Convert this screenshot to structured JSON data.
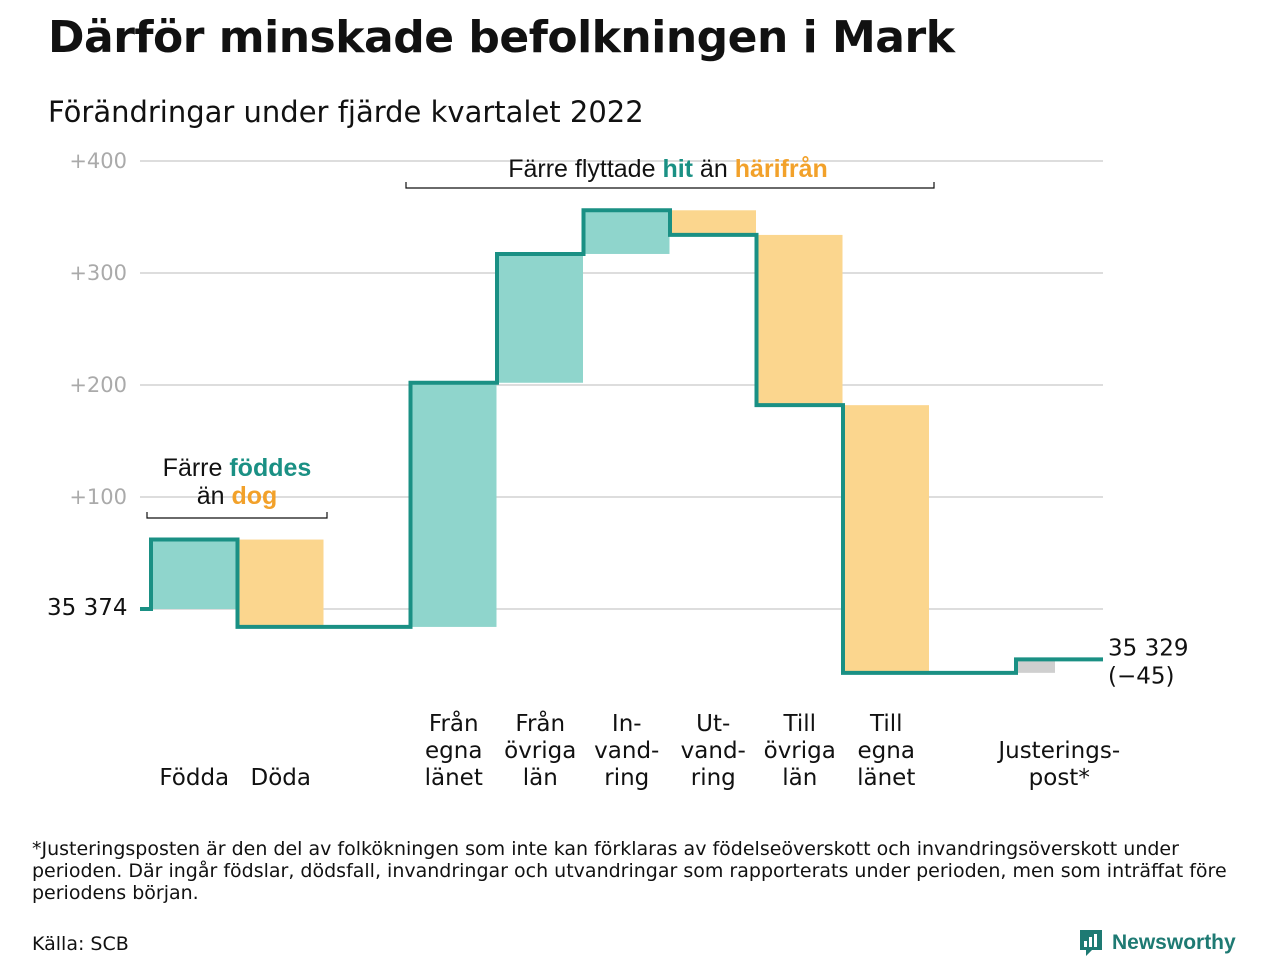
{
  "title": "Därför minskade befolkningen i Mark",
  "subtitle": "Förändringar under fjärde kvartalet 2022",
  "colors": {
    "increase": "#8fd5cc",
    "decrease": "#fbd68e",
    "adjustment": "#cfcfcf",
    "line": "#1a9084",
    "hit": "#1a9084",
    "harifran": "#f2a12a",
    "grid": "#dddddd",
    "tick": "#aaaaaa",
    "brand": "#1e7a73"
  },
  "chart_data": {
    "type": "waterfall",
    "start_value": 35374,
    "start_label": "35 374",
    "end_value": 35329,
    "end_label": "35 329",
    "end_change_label": "(−45)",
    "ylim": [
      -70,
      400
    ],
    "yticks": [
      {
        "value": 100,
        "label": "+100"
      },
      {
        "value": 200,
        "label": "+200"
      },
      {
        "value": 300,
        "label": "+300"
      },
      {
        "value": 400,
        "label": "+400"
      }
    ],
    "grid": true,
    "categories": [
      {
        "label": [
          "Födda"
        ],
        "change": 62,
        "kind": "increase"
      },
      {
        "label": [
          "Döda"
        ],
        "change": -78,
        "kind": "decrease"
      },
      {
        "label": [],
        "change": 0,
        "kind": "spacer"
      },
      {
        "label": [
          "Från",
          "egna",
          "länet"
        ],
        "change": 218,
        "kind": "increase"
      },
      {
        "label": [
          "Från",
          "övriga",
          "län"
        ],
        "change": 115,
        "kind": "increase"
      },
      {
        "label": [
          "In-",
          "vand-",
          "ring"
        ],
        "change": 39,
        "kind": "increase"
      },
      {
        "label": [
          "Ut-",
          "vand-",
          "ring"
        ],
        "change": -22,
        "kind": "decrease"
      },
      {
        "label": [
          "Till",
          "övriga",
          "län"
        ],
        "change": -152,
        "kind": "decrease"
      },
      {
        "label": [
          "Till",
          "egna",
          "länet"
        ],
        "change": -239,
        "kind": "decrease"
      },
      {
        "label": [],
        "change": 0,
        "kind": "spacer"
      },
      {
        "label": [
          "Justerings-",
          "post*"
        ],
        "change": 12,
        "kind": "adjustment"
      }
    ],
    "annotations": {
      "births_deaths": {
        "line1": "Färre",
        "line1_highlight": "föddes",
        "line2": "än",
        "line2_highlight": "dog"
      },
      "migration": {
        "text": "Färre flyttade",
        "highlight1": "hit",
        "middle": "än",
        "highlight2": "härifrån"
      }
    }
  },
  "footnote": "*Justeringsposten är den del av folkökningen som inte kan förklaras av födelseöverskott och invandringsöverskott under perioden. Där ingår födslar, dödsfall, invandringar och utvandringar som rapporterats under perioden, men som inträffat före periodens början.",
  "source": "Källa: SCB",
  "brand": {
    "name": "Newsworthy",
    "icon": "newsworthy-logo-icon"
  }
}
